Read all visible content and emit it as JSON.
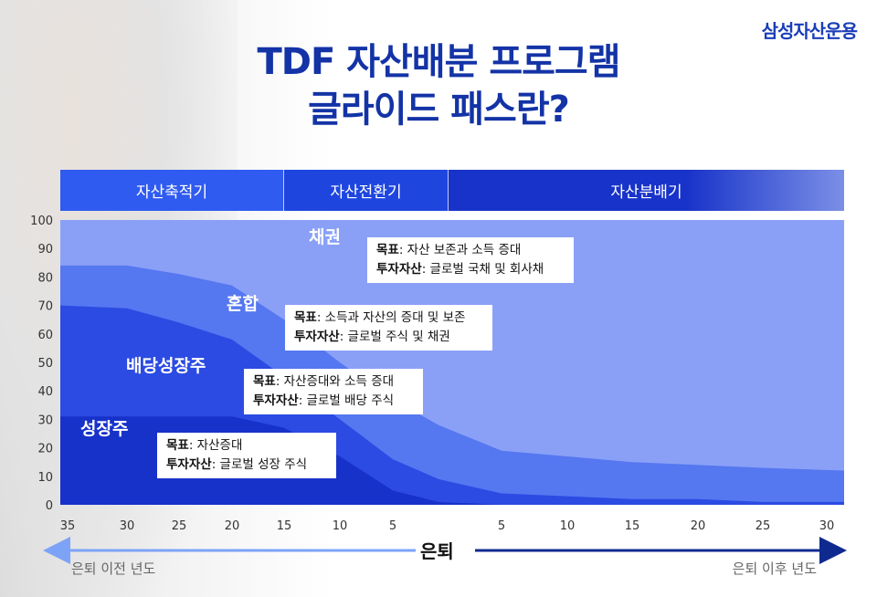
{
  "brand": "삼성자산운용",
  "title": {
    "line1": "TDF 자산배분 프로그램",
    "line2": "글라이드 패스란?"
  },
  "phases": [
    {
      "label": "자산축적기",
      "color": "#2f5bf0"
    },
    {
      "label": "자산전환기",
      "color": "#1e46df"
    },
    {
      "label": "자산분배기",
      "color": "#1833c9"
    }
  ],
  "callouts": [
    {
      "key": "bond",
      "goal_label": "목표",
      "goal": ": 자산 보존과 소득 증대",
      "asset_label": "투자자산",
      "asset": ": 글로벌 국채 및 회사채"
    },
    {
      "key": "mixed",
      "goal_label": "목표",
      "goal": ": 소득과 자산의 증대 및 보존",
      "asset_label": "투자자산",
      "asset": ": 글로벌 주식 및 채권"
    },
    {
      "key": "dividend",
      "goal_label": "목표",
      "goal": ": 자산증대와 소득 증대",
      "asset_label": "투자자산",
      "asset": ": 글로벌 배당 주식"
    },
    {
      "key": "growth",
      "goal_label": "목표",
      "goal": ": 자산증대",
      "asset_label": "투자자산",
      "asset": ": 글로벌 성장 주식"
    }
  ],
  "axis": {
    "center_label": "은퇴",
    "left_label": "은퇴 이전 년도",
    "right_label": "은퇴 이후 년도"
  },
  "colors": {
    "bond": "#8aa0f7",
    "mixed": "#5577f0",
    "dividend": "#2b4be3",
    "growth": "#1732c9",
    "arrow_left": "#7da3f7",
    "arrow_right": "#0f2a8f"
  },
  "chart_data": {
    "type": "area",
    "x_tick_labels": [
      "35",
      "30",
      "25",
      "20",
      "15",
      "10",
      "5",
      "",
      "5",
      "10",
      "15",
      "20",
      "25",
      "30"
    ],
    "x": [
      -35,
      -30,
      -25,
      -20,
      -15,
      -10,
      -5,
      0,
      5,
      10,
      15,
      20,
      25,
      30
    ],
    "ylim": [
      0,
      100
    ],
    "y_ticks": [
      0,
      10,
      20,
      30,
      40,
      50,
      60,
      70,
      80,
      90,
      100
    ],
    "grid": false,
    "series": [
      {
        "name": "성장주",
        "cumulative_top": [
          31,
          31,
          31,
          31,
          27,
          17,
          5,
          1,
          0,
          0,
          0,
          0,
          0,
          0
        ]
      },
      {
        "name": "배당성장주",
        "cumulative_top": [
          70,
          69,
          64,
          58,
          45,
          30,
          16,
          9,
          4,
          3,
          2,
          2,
          1,
          1
        ]
      },
      {
        "name": "혼합",
        "cumulative_top": [
          84,
          84,
          81,
          77,
          65,
          50,
          37,
          28,
          19,
          17,
          15,
          14,
          13,
          12
        ]
      },
      {
        "name": "채권",
        "cumulative_top": [
          100,
          100,
          100,
          100,
          100,
          100,
          100,
          100,
          100,
          100,
          100,
          100,
          100,
          100
        ]
      }
    ]
  }
}
